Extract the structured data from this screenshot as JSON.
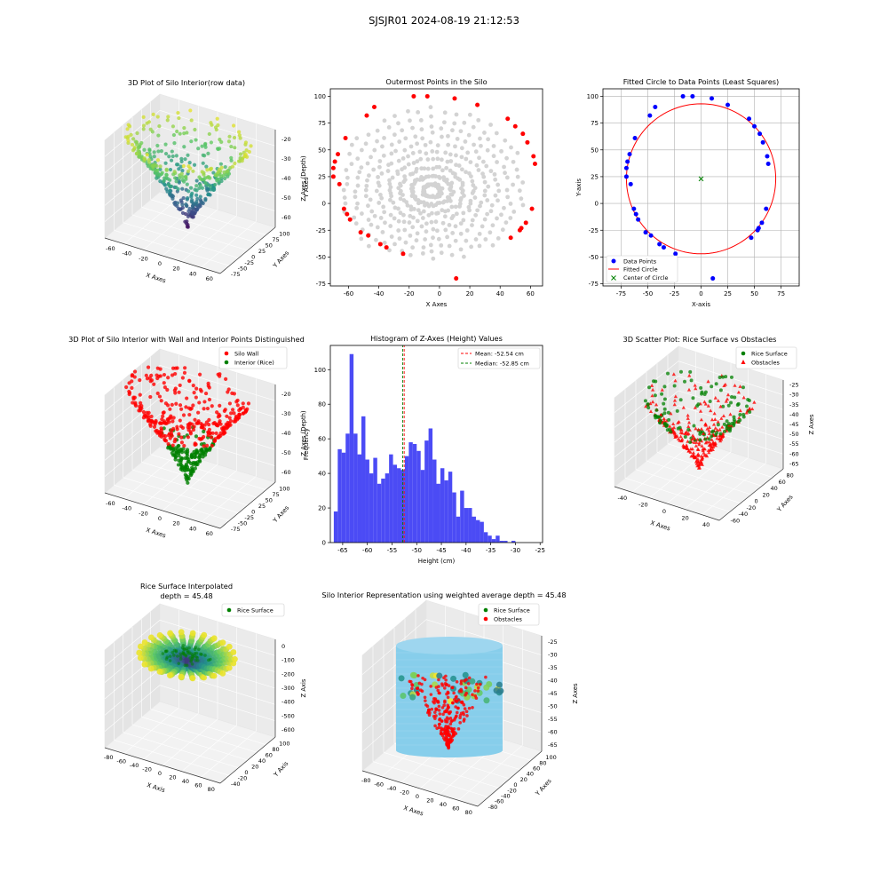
{
  "suptitle": "SJSJR01 2024-08-19 21:12:53",
  "colors": {
    "gray_points": "#d3d3d3",
    "red": "#ff0000",
    "blue": "#0000ff",
    "green": "#008000",
    "hist_blue": "#4b4bf5",
    "cyan_surface": "#87ceeb",
    "viridis": [
      "#440154",
      "#3b528b",
      "#21918c",
      "#5ec962",
      "#fde725"
    ]
  },
  "panels": {
    "p1": {
      "title": "3D Plot of Silo Interior(row data)",
      "xlabel": "X Axes",
      "ylabel": "Y Axes",
      "zlabel": "Z Axes (Depth)",
      "xticks": [
        "-60",
        "-40",
        "-20",
        "0",
        "20",
        "40",
        "60"
      ],
      "yticks": [
        "-75",
        "-50",
        "-25",
        "0",
        "25",
        "50",
        "75",
        "100"
      ],
      "zticks": [
        "-20",
        "-30",
        "-40",
        "-50",
        "-60"
      ]
    },
    "p4": {
      "title": "3D Plot of Silo Interior with Wall and Interior Points Distinguished",
      "xlabel": "X Axes",
      "ylabel": "Y Axes",
      "zlabel": "Z Axes (Depth)",
      "xticks": [
        "-60",
        "-40",
        "-20",
        "0",
        "20",
        "40",
        "60"
      ],
      "yticks": [
        "-75",
        "-50",
        "-25",
        "0",
        "25",
        "50",
        "75",
        "100"
      ],
      "zticks": [
        "-20",
        "-30",
        "-40",
        "-50",
        "-60"
      ],
      "legend": [
        "Silo Wall",
        "Interior (Rice)"
      ]
    },
    "p6": {
      "title": "3D Scatter Plot: Rice Surface vs Obstacles",
      "xlabel": "X Axes",
      "ylabel": "Y Axes",
      "zlabel": "Z Axes",
      "xticks": [
        "-40",
        "-20",
        "0",
        "20",
        "40"
      ],
      "yticks": [
        "-60",
        "-40",
        "-20",
        "0",
        "20",
        "40",
        "60",
        "80"
      ],
      "zticks": [
        "-25",
        "-30",
        "-35",
        "-40",
        "-45",
        "-50",
        "-55",
        "-60",
        "-65"
      ],
      "legend": [
        "Rice Surface",
        "Obstacles"
      ]
    },
    "p7": {
      "title_line1": "Rice Surface Interpolated",
      "title_line2": "depth = 45.48",
      "xlabel": "X Axis",
      "ylabel": "Y Axis",
      "zlabel": "Z Axis",
      "xticks": [
        "-80",
        "-60",
        "-40",
        "-20",
        "0",
        "20",
        "40",
        "60",
        "80"
      ],
      "yticks": [
        "-40",
        "-20",
        "0",
        "20",
        "40",
        "60",
        "80",
        "100"
      ],
      "zticks": [
        "0",
        "-100",
        "-200",
        "-300",
        "-400",
        "-500",
        "-600"
      ],
      "legend": [
        "Rice Surface"
      ]
    },
    "p8": {
      "title": "Silo Interior Representation using weighted average depth = 45.48",
      "xlabel": "X Axes",
      "ylabel": "Y Axes",
      "zlabel": "Z Axes",
      "xticks": [
        "-80",
        "-60",
        "-40",
        "-20",
        "0",
        "20",
        "40",
        "60",
        "80"
      ],
      "yticks": [
        "-80",
        "-60",
        "-40",
        "-20",
        "0",
        "20",
        "40",
        "60",
        "80",
        "100"
      ],
      "zticks": [
        "-25",
        "-30",
        "-35",
        "-40",
        "-45",
        "-50",
        "-55",
        "-60",
        "-65"
      ],
      "legend": [
        "Rice Surface",
        "Obstacles"
      ]
    }
  },
  "chart_data": [
    {
      "id": "outermost",
      "type": "scatter",
      "title": "Outermost Points in the Silo",
      "xlabel": "X Axes",
      "ylabel": "Y Axes",
      "xlim": [
        -72,
        68
      ],
      "ylim": [
        -77,
        107
      ],
      "xticks": [
        -60,
        -40,
        -20,
        0,
        20,
        40,
        60
      ],
      "yticks": [
        -75,
        -50,
        -25,
        0,
        25,
        50,
        75,
        100
      ],
      "series": [
        {
          "color": "#ff0000",
          "points": [
            [
              -17,
              100
            ],
            [
              -8,
              100
            ],
            [
              10,
              98
            ],
            [
              25,
              92
            ],
            [
              -43,
              90
            ],
            [
              -48,
              82
            ],
            [
              45,
              79
            ],
            [
              50,
              72
            ],
            [
              55,
              65
            ],
            [
              -62,
              61
            ],
            [
              58,
              57
            ],
            [
              -67,
              46
            ],
            [
              62,
              44
            ],
            [
              -69,
              39
            ],
            [
              63,
              37
            ],
            [
              -70,
              33
            ],
            [
              -70,
              25
            ],
            [
              -66,
              18
            ],
            [
              61,
              -5
            ],
            [
              -63,
              -5
            ],
            [
              -61,
              -10
            ],
            [
              -59,
              -15
            ],
            [
              57,
              -18
            ],
            [
              54,
              -23
            ],
            [
              -52,
              -27
            ],
            [
              53,
              -25
            ],
            [
              -47,
              -30
            ],
            [
              -39,
              -38
            ],
            [
              -35,
              -41
            ],
            [
              -24,
              -47
            ],
            [
              47,
              -32
            ],
            [
              11,
              -70
            ]
          ]
        }
      ]
    },
    {
      "id": "fitted_circle",
      "type": "scatter",
      "title": "Fitted Circle to Data Points (Least Squares)",
      "xlabel": "X-axis",
      "ylabel": "Y-axis",
      "xlim": [
        -92,
        92
      ],
      "ylim": [
        -77,
        107
      ],
      "xticks": [
        -75,
        -50,
        -25,
        0,
        25,
        50,
        75
      ],
      "yticks": [
        -75,
        -50,
        -25,
        0,
        25,
        50,
        75,
        100
      ],
      "circle": {
        "center": [
          0,
          23
        ],
        "radius": 70
      },
      "legend": [
        "Data Points",
        "Fitted Circle",
        "Center of Circle"
      ],
      "series": [
        {
          "name": "Data Points",
          "color": "#0000ff",
          "points": [
            [
              -17,
              100
            ],
            [
              -8,
              100
            ],
            [
              10,
              98
            ],
            [
              25,
              92
            ],
            [
              -43,
              90
            ],
            [
              -48,
              82
            ],
            [
              45,
              79
            ],
            [
              50,
              72
            ],
            [
              55,
              65
            ],
            [
              -62,
              61
            ],
            [
              58,
              57
            ],
            [
              -67,
              46
            ],
            [
              62,
              44
            ],
            [
              -69,
              39
            ],
            [
              63,
              37
            ],
            [
              -70,
              33
            ],
            [
              -70,
              25
            ],
            [
              -66,
              18
            ],
            [
              61,
              -5
            ],
            [
              -63,
              -5
            ],
            [
              -61,
              -10
            ],
            [
              -59,
              -15
            ],
            [
              57,
              -18
            ],
            [
              54,
              -23
            ],
            [
              -52,
              -27
            ],
            [
              53,
              -25
            ],
            [
              -47,
              -30
            ],
            [
              -39,
              -38
            ],
            [
              -35,
              -41
            ],
            [
              -24,
              -47
            ],
            [
              47,
              -32
            ],
            [
              11,
              -70
            ]
          ]
        }
      ]
    },
    {
      "id": "histogram",
      "type": "bar",
      "title": "Histogram of Z-Axes (Height) Values",
      "xlabel": "Height (cm)",
      "ylabel": "Frequency",
      "xlim": [
        -67.5,
        -24.5
      ],
      "ylim": [
        0,
        114
      ],
      "xticks": [
        -65,
        -60,
        -55,
        -50,
        -45,
        -40,
        -35,
        -30,
        -25
      ],
      "yticks": [
        0,
        20,
        40,
        60,
        80,
        100
      ],
      "bin_start": -66.8,
      "bin_width": 0.8,
      "values": [
        18,
        54,
        52,
        63,
        109,
        63,
        51,
        73,
        48,
        40,
        49,
        34,
        37,
        40,
        51,
        45,
        43,
        42,
        50,
        58,
        57,
        53,
        42,
        59,
        66,
        48,
        34,
        43,
        36,
        41,
        29,
        15,
        30,
        20,
        20,
        15,
        13,
        12,
        6,
        4,
        2,
        4,
        1,
        1,
        0,
        1
      ],
      "mean": -52.54,
      "median": -52.85,
      "mean_label": "Mean: -52.54 cm",
      "median_label": "Median: -52.85 cm"
    }
  ]
}
